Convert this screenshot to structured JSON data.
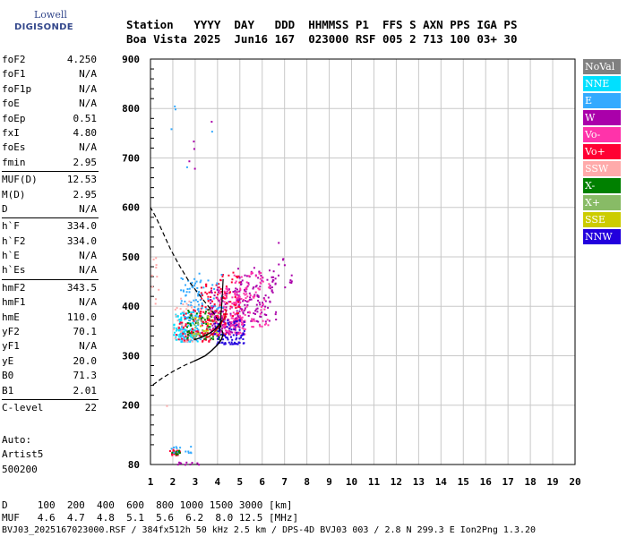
{
  "logo": {
    "line1": "Lowell",
    "line2": "DIGISONDE"
  },
  "header": {
    "labels": [
      "Station",
      "YYYY",
      "DAY",
      "DDD",
      "HHMMSS",
      "P1",
      "FFS",
      "S",
      "AXN",
      "PPS",
      "IGA",
      "PS"
    ],
    "values": [
      "Boa Vista",
      "2025",
      "Jun16",
      "167",
      "023000",
      "RSF",
      "005",
      "2",
      "713",
      "100",
      "03+",
      "30"
    ]
  },
  "params": {
    "group1": [
      {
        "name": "foF2",
        "value": "4.250"
      },
      {
        "name": "foF1",
        "value": "N/A"
      },
      {
        "name": "foF1p",
        "value": "N/A"
      },
      {
        "name": "foE",
        "value": "N/A"
      },
      {
        "name": "foEp",
        "value": "0.51"
      },
      {
        "name": "fxI",
        "value": "4.80"
      },
      {
        "name": "foEs",
        "value": "N/A"
      },
      {
        "name": "fmin",
        "value": "2.95"
      }
    ],
    "group2": [
      {
        "name": "MUF(D)",
        "value": "12.53"
      },
      {
        "name": "M(D)",
        "value": "2.95"
      },
      {
        "name": "D",
        "value": "N/A"
      }
    ],
    "group3": [
      {
        "name": "h`F",
        "value": "334.0"
      },
      {
        "name": "h`F2",
        "value": "334.0"
      },
      {
        "name": "h`E",
        "value": "N/A"
      },
      {
        "name": "h`Es",
        "value": "N/A"
      }
    ],
    "group4": [
      {
        "name": "hmF2",
        "value": "343.5"
      },
      {
        "name": "hmF1",
        "value": "N/A"
      },
      {
        "name": "hmE",
        "value": "110.0"
      },
      {
        "name": "yF2",
        "value": "70.1"
      },
      {
        "name": "yF1",
        "value": "N/A"
      },
      {
        "name": "yE",
        "value": "20.0"
      },
      {
        "name": "B0",
        "value": "71.3"
      },
      {
        "name": "B1",
        "value": "2.01"
      }
    ],
    "group5": [
      {
        "name": "C-level",
        "value": "22"
      }
    ]
  },
  "auto": {
    "line1": "Auto:",
    "line2": "Artist5",
    "line3": "500200"
  },
  "muf_table": {
    "d_label": "D",
    "d_values": [
      "100",
      "200",
      "400",
      "600",
      "800",
      "1000",
      "1500",
      "3000"
    ],
    "d_unit": "[km]",
    "muf_label": "MUF",
    "muf_values": [
      "4.6",
      "4.7",
      "4.8",
      "5.1",
      "5.6",
      "6.2",
      "8.0",
      "12.5"
    ],
    "muf_unit": "[MHz]"
  },
  "footer": "BVJ03_2025167023000.RSF / 384fx512h 50 kHz 2.5 km / DPS-4D BVJ03 003 / 2.8 N 299.3 E  Ion2Png 1.3.20",
  "legend": [
    {
      "label": "NoVal",
      "color": "#808080"
    },
    {
      "label": "NNE",
      "color": "#00e0ff"
    },
    {
      "label": "E",
      "color": "#33aaff"
    },
    {
      "label": "W",
      "color": "#aa00aa"
    },
    {
      "label": "Vo-",
      "color": "#ff33aa"
    },
    {
      "label": "Vo+",
      "color": "#ff0033"
    },
    {
      "label": "SSW",
      "color": "#ffaaaa"
    },
    {
      "label": "X-",
      "color": "#008000"
    },
    {
      "label": "X+",
      "color": "#88bb66"
    },
    {
      "label": "SSE",
      "color": "#cccc00"
    },
    {
      "label": "NNW",
      "color": "#2200dd"
    }
  ],
  "chart_data": {
    "type": "scatter",
    "x_ticks": [
      "1",
      "2",
      "3",
      "4",
      "5",
      "6",
      "7",
      "8",
      "9",
      "10",
      "11",
      "12",
      "13",
      "14",
      "15",
      "16",
      "17",
      "18",
      "19",
      "20"
    ],
    "y_ticks": [
      "80",
      "200",
      "300",
      "400",
      "500",
      "600",
      "700",
      "800",
      "900"
    ],
    "y_tick_values": [
      80,
      200,
      300,
      400,
      500,
      600,
      700,
      800,
      900
    ],
    "xlim": [
      1,
      20
    ],
    "ylim": [
      80,
      900
    ],
    "grid": true,
    "profile_solid": [
      [
        4.25,
        343.5
      ],
      [
        4.18,
        333
      ],
      [
        4.0,
        322
      ],
      [
        3.75,
        311
      ],
      [
        3.45,
        300
      ],
      [
        3.15,
        293
      ],
      [
        2.95,
        289
      ]
    ],
    "profile_dashed_lower": [
      [
        2.95,
        289
      ],
      [
        2.5,
        280
      ],
      [
        2.0,
        268
      ],
      [
        1.5,
        254
      ],
      [
        1.2,
        244
      ],
      [
        1.0,
        238
      ]
    ],
    "profile_dashed_upper": [
      [
        4.25,
        343.5
      ],
      [
        4.15,
        360
      ],
      [
        3.9,
        382
      ],
      [
        3.5,
        405
      ],
      [
        3.1,
        428
      ],
      [
        2.7,
        452
      ],
      [
        2.3,
        482
      ],
      [
        1.9,
        515
      ],
      [
        1.55,
        550
      ],
      [
        1.25,
        580
      ],
      [
        1.0,
        600
      ]
    ],
    "trace_lines": [
      {
        "points": [
          [
            2.95,
            332
          ],
          [
            3.2,
            336
          ],
          [
            3.5,
            342
          ],
          [
            3.8,
            350
          ],
          [
            4.0,
            358
          ],
          [
            4.2,
            372
          ]
        ],
        "color": "#000000"
      },
      {
        "points": [
          [
            3.5,
            336
          ],
          [
            3.8,
            345
          ],
          [
            4.1,
            360
          ],
          [
            4.3,
            376
          ],
          [
            4.4,
            392
          ]
        ],
        "color": "#cc0000"
      },
      {
        "points": [
          [
            4.1,
            350
          ],
          [
            4.15,
            380
          ],
          [
            4.2,
            410
          ],
          [
            4.25,
            455
          ]
        ],
        "color": "#000000"
      }
    ],
    "clusters": [
      {
        "color": "#00e0ff",
        "n": 120,
        "x": [
          2.0,
          3.1
        ],
        "y": [
          330,
          390
        ]
      },
      {
        "color": "#33aaff",
        "n": 110,
        "x": [
          2.3,
          3.3
        ],
        "y": [
          330,
          460
        ]
      },
      {
        "color": "#ffaaaa",
        "n": 40,
        "x": [
          2.0,
          3.0
        ],
        "y": [
          330,
          420
        ]
      },
      {
        "color": "#ff0033",
        "n": 70,
        "x": [
          2.1,
          3.7
        ],
        "y": [
          330,
          395
        ]
      },
      {
        "color": "#008000",
        "n": 60,
        "x": [
          2.6,
          4.2
        ],
        "y": [
          335,
          400
        ]
      },
      {
        "color": "#88bb66",
        "n": 40,
        "x": [
          2.8,
          4.0
        ],
        "y": [
          340,
          395
        ]
      },
      {
        "color": "#cccc00",
        "n": 20,
        "x": [
          2.9,
          4.0
        ],
        "y": [
          345,
          385
        ]
      },
      {
        "color": "#ff0033",
        "n": 90,
        "x": [
          3.2,
          4.4
        ],
        "y": [
          340,
          450
        ]
      },
      {
        "color": "#aa00aa",
        "n": 120,
        "x": [
          3.6,
          5.0
        ],
        "y": [
          345,
          440
        ]
      },
      {
        "color": "#ff33aa",
        "n": 110,
        "x": [
          3.9,
          5.2
        ],
        "y": [
          345,
          450
        ]
      },
      {
        "color": "#2200dd",
        "n": 90,
        "x": [
          3.8,
          5.2
        ],
        "y": [
          325,
          375
        ]
      },
      {
        "color": "#aa00aa",
        "n": 120,
        "x": [
          4.8,
          6.6
        ],
        "y": [
          370,
          480
        ]
      },
      {
        "color": "#ff33aa",
        "n": 90,
        "x": [
          4.6,
          6.3
        ],
        "y": [
          360,
          470
        ]
      },
      {
        "color": "#ff0033",
        "n": 40,
        "x": [
          4.0,
          5.0
        ],
        "y": [
          380,
          470
        ]
      },
      {
        "color": "#33aaff",
        "n": 25,
        "x": [
          3.0,
          4.2
        ],
        "y": [
          395,
          470
        ]
      },
      {
        "color": "#ff0033",
        "n": 18,
        "x": [
          1.8,
          2.3
        ],
        "y": [
          100,
          112
        ]
      },
      {
        "color": "#33aaff",
        "n": 14,
        "x": [
          1.9,
          2.8
        ],
        "y": [
          105,
          118
        ]
      },
      {
        "color": "#008000",
        "n": 8,
        "x": [
          1.9,
          2.3
        ],
        "y": [
          102,
          110
        ]
      },
      {
        "color": "#aa00aa",
        "n": 10,
        "x": [
          2.0,
          3.5
        ],
        "y": [
          80,
          86
        ]
      },
      {
        "color": "#ffaaaa",
        "n": 10,
        "x": [
          1.0,
          1.4
        ],
        "y": [
          400,
          500
        ]
      },
      {
        "color": "#aa00aa",
        "n": 12,
        "x": [
          6.5,
          7.3
        ],
        "y": [
          440,
          500
        ]
      }
    ],
    "outliers": [
      {
        "x": 2.05,
        "y": 806,
        "color": "#33aaff"
      },
      {
        "x": 2.08,
        "y": 800,
        "color": "#33aaff"
      },
      {
        "x": 2.9,
        "y": 735,
        "color": "#aa00aa"
      },
      {
        "x": 2.92,
        "y": 720,
        "color": "#aa00aa"
      },
      {
        "x": 2.95,
        "y": 680,
        "color": "#aa00aa"
      },
      {
        "x": 3.7,
        "y": 775,
        "color": "#aa00aa"
      },
      {
        "x": 3.72,
        "y": 755,
        "color": "#33aaff"
      },
      {
        "x": 2.6,
        "y": 683,
        "color": "#33aaff"
      },
      {
        "x": 1.9,
        "y": 760,
        "color": "#33aaff"
      },
      {
        "x": 6.7,
        "y": 530,
        "color": "#aa00aa"
      },
      {
        "x": 2.7,
        "y": 695,
        "color": "#aa00aa"
      },
      {
        "x": 1.7,
        "y": 200,
        "color": "#ffaaaa"
      }
    ]
  }
}
